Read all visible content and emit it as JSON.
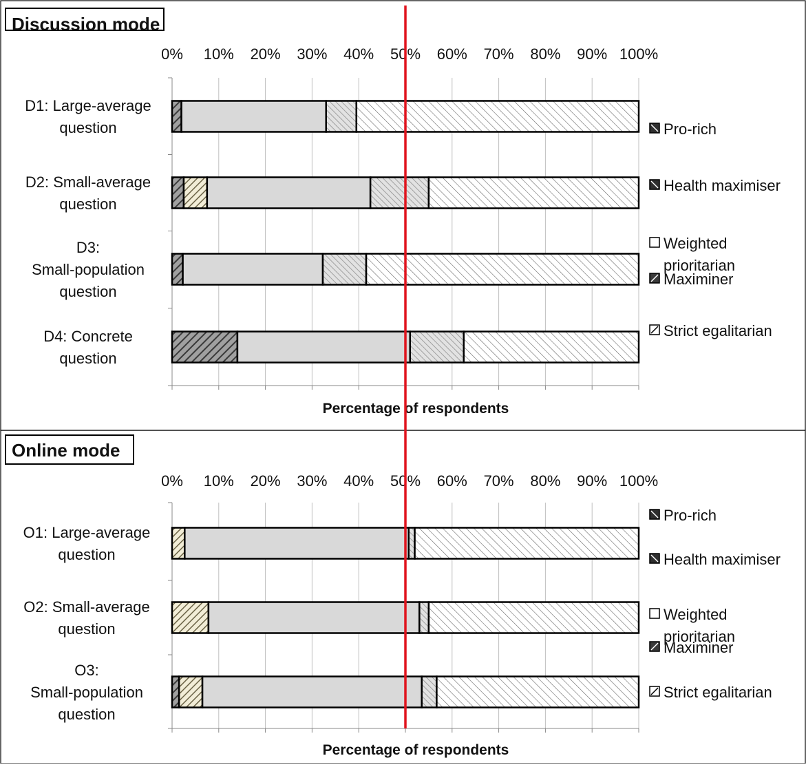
{
  "legend": [
    "Pro-rich",
    "Health maximiser",
    "Weighted prioritarian",
    "Maximiner",
    "Strict egalitarian"
  ],
  "chart_data": [
    {
      "type": "bar",
      "orientation": "horizontal",
      "stacked": "100%",
      "title": "Discussion mode",
      "xlabel": "Percentage of respondents",
      "ylabel": "",
      "xlim": [
        0,
        100
      ],
      "x_ticks": [
        "0%",
        "10%",
        "20%",
        "30%",
        "40%",
        "50%",
        "60%",
        "70%",
        "80%",
        "90%",
        "100%"
      ],
      "grid": "vertical",
      "legend_position": "right",
      "reference_line": {
        "x": 50,
        "color": "#e0141e"
      },
      "categories": [
        "D1: Large-average question",
        "D2: Small-average question",
        "D3: Small-population question",
        "D4: Concrete question"
      ],
      "series": [
        {
          "name": "Pro-rich",
          "values": [
            2,
            2.5,
            2.3,
            14
          ]
        },
        {
          "name": "Health maximiser",
          "values": [
            0,
            5,
            0,
            0
          ]
        },
        {
          "name": "Weighted prioritarian",
          "values": [
            31,
            35,
            30,
            37
          ]
        },
        {
          "name": "Maximiner",
          "values": [
            6.5,
            12.5,
            9.3,
            11.5
          ]
        },
        {
          "name": "Strict egalitarian",
          "values": [
            60.5,
            45,
            58.4,
            37.5
          ]
        }
      ]
    },
    {
      "type": "bar",
      "orientation": "horizontal",
      "stacked": "100%",
      "title": "Online mode",
      "xlabel": "Percentage of respondents",
      "ylabel": "",
      "xlim": [
        0,
        100
      ],
      "x_ticks": [
        "0%",
        "10%",
        "20%",
        "30%",
        "40%",
        "50%",
        "60%",
        "70%",
        "80%",
        "90%",
        "100%"
      ],
      "grid": "vertical",
      "legend_position": "right",
      "reference_line": {
        "x": 50,
        "color": "#e0141e"
      },
      "categories": [
        "O1: Large-average question",
        "O2: Small-average question",
        "O3: Small-population question"
      ],
      "series": [
        {
          "name": "Pro-rich",
          "values": [
            0,
            0,
            1.5
          ]
        },
        {
          "name": "Health maximiser",
          "values": [
            2.7,
            7.8,
            5
          ]
        },
        {
          "name": "Weighted prioritarian",
          "values": [
            48,
            45.2,
            47
          ]
        },
        {
          "name": "Maximiner",
          "values": [
            1.3,
            2,
            3.2
          ]
        },
        {
          "name": "Strict egalitarian",
          "values": [
            48,
            45,
            43.3
          ]
        }
      ]
    }
  ]
}
